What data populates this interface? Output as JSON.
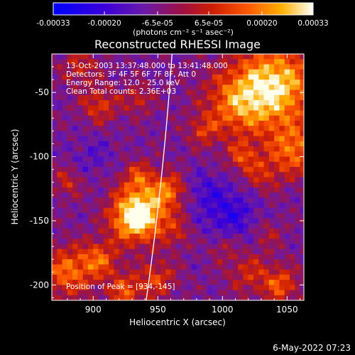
{
  "chart_data": {
    "type": "heatmap",
    "title": "Reconstructed RHESSI Image",
    "colorbar": {
      "ticks": [
        "-0.00033",
        "-0.00020",
        "-6.5e-05",
        "6.5e-05",
        "0.00020",
        "0.00033"
      ],
      "unit_label": "(photons cm⁻² s⁻¹ asec⁻²)",
      "range": [
        -0.00033,
        0.00033
      ],
      "colors": [
        "#0000ff",
        "#4a00d0",
        "#7a1f9a",
        "#a01040",
        "#d02000",
        "#ff5000",
        "#ff9a00",
        "#ffd040",
        "#ffffe8"
      ]
    },
    "xlabel": "Heliocentric X (arcsec)",
    "ylabel": "Heliocentric Y (arcsec)",
    "xlim": [
      868,
      1063
    ],
    "ylim": [
      -212,
      -20
    ],
    "xticks": [
      900,
      950,
      1000,
      1050
    ],
    "yticks": [
      -50,
      -100,
      -150,
      -200
    ],
    "info_lines": [
      "13-Oct-2003 13:37:48.000 to 13:41:48.000",
      "Detectors: 3F 4F 5F 6F 7F 8F, Att 0",
      "Energy Range: 12.0 - 25.0 keV",
      "Clean     Total counts: 2.36E+03"
    ],
    "peak_label": "Position of Peak = [934,-145]",
    "limb": {
      "label": "",
      "x_top": 961,
      "x_bottom": 941
    }
  },
  "footer": {
    "timestamp": "6-May-2022 07:23"
  }
}
